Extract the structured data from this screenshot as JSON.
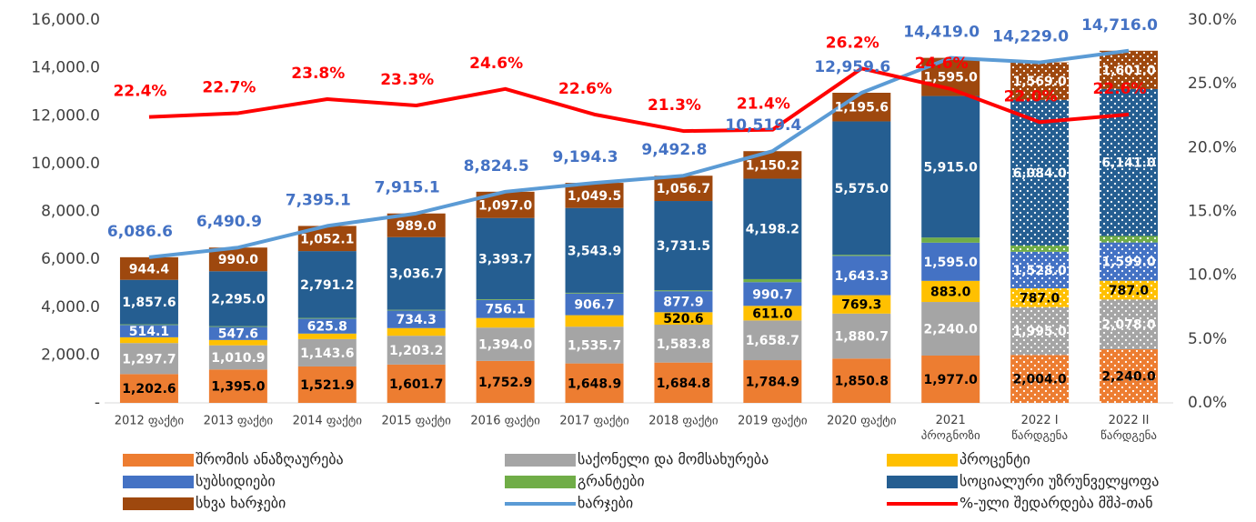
{
  "chart_data": {
    "type": "bar",
    "categories": [
      "2012 ფაქტი",
      "2013 ფაქტი",
      "2014 ფაქტი",
      "2015 ფაქტი",
      "2016 ფაქტი",
      "2017 ფაქტი",
      "2018 ფაქტი",
      "2019 ფაქტი",
      "2020 ფაქტი",
      "2021 პროგნოზი",
      "2022 I წარდგენა",
      "2022 II წარდგენა"
    ],
    "dotted": [
      false,
      false,
      false,
      false,
      false,
      false,
      false,
      false,
      false,
      false,
      true,
      true
    ],
    "ylim": [
      0,
      16000
    ],
    "yticks": [
      {
        "value": 0,
        "label": "-"
      },
      {
        "value": 2000,
        "label": "2,000.0"
      },
      {
        "value": 4000,
        "label": "4,000.0"
      },
      {
        "value": 6000,
        "label": "6,000.0"
      },
      {
        "value": 8000,
        "label": "8,000.0"
      },
      {
        "value": 10000,
        "label": "10,000.0"
      },
      {
        "value": 12000,
        "label": "12,000.0"
      },
      {
        "value": 14000,
        "label": "14,000.0"
      },
      {
        "value": 16000,
        "label": "16,000.0"
      }
    ],
    "y2lim": [
      0,
      30
    ],
    "y2ticks": [
      {
        "value": 0,
        "label": "0.0%"
      },
      {
        "value": 5,
        "label": "5.0%"
      },
      {
        "value": 10,
        "label": "10.0%"
      },
      {
        "value": 15,
        "label": "15.0%"
      },
      {
        "value": 20,
        "label": "20.0%"
      },
      {
        "value": 25,
        "label": "25.0%"
      },
      {
        "value": 30,
        "label": "30.0%"
      }
    ],
    "series": [
      {
        "name": "შრომის ანაზღაურება",
        "type": "bar",
        "color": "#ed7d31",
        "label_color": "#000000",
        "values": [
          1202.6,
          1395.0,
          1521.9,
          1601.7,
          1752.9,
          1648.9,
          1684.8,
          1784.9,
          1850.8,
          1977.0,
          2004.0,
          2240.0
        ],
        "value_labels": [
          "1,202.6",
          "1,395.0",
          "1,521.9",
          "1,601.7",
          "1,752.9",
          "1,648.9",
          "1,684.8",
          "1,784.9",
          "1,850.8",
          "1,977.0",
          "2,004.0",
          "2,240.0"
        ]
      },
      {
        "name": "საქონელი და მომსახურება",
        "type": "bar",
        "color": "#a5a5a5",
        "label_color": "#ffffff",
        "values": [
          1297.7,
          1010.9,
          1143.6,
          1203.2,
          1394.0,
          1535.7,
          1583.8,
          1658.7,
          1880.7,
          2240.0,
          1995.0,
          2078.0
        ],
        "value_labels": [
          "1,297.7",
          "1,010.9",
          "1,143.6",
          "1,203.2",
          "1,394.0",
          "1,535.7",
          "1,583.8",
          "1,658.7",
          "1,880.7",
          "2,240.0",
          "1,995.0",
          "2,078.0"
        ]
      },
      {
        "name": "პროცენტი",
        "type": "bar",
        "color": "#ffc000",
        "label_color": "#000000",
        "values": [
          240,
          222,
          230,
          320,
          400,
          480,
          520.6,
          611.0,
          769.3,
          883.0,
          787.0,
          787.0
        ],
        "value_labels": [
          null,
          null,
          null,
          null,
          null,
          null,
          "520.6",
          "611.0",
          "769.3",
          "883.0",
          "787.0",
          "787.0"
        ]
      },
      {
        "name": "სუბსიდიები",
        "type": "bar",
        "color": "#4472c4",
        "label_color": "#ffffff",
        "values": [
          514.1,
          547.6,
          625.8,
          734.3,
          756.1,
          906.7,
          877.9,
          990.7,
          1643.3,
          1595.0,
          1528.0,
          1599.0
        ],
        "value_labels": [
          "514.1",
          "547.6",
          "625.8",
          "734.3",
          "756.1",
          "906.7",
          "877.9",
          "990.7",
          "1,643.3",
          "1,595.0",
          "1,528.0",
          "1,599.0"
        ]
      },
      {
        "name": "გრანტები",
        "type": "bar",
        "color": "#70ad47",
        "label_color": "#000000",
        "values": [
          30,
          30,
          30,
          30,
          30,
          30,
          37.5,
          125.7,
          44.9,
          214,
          262,
          270
        ]
      },
      {
        "name": "სოციალური უზრუნველყოფა",
        "type": "bar",
        "color": "#255e91",
        "label_color": "#ffffff",
        "values": [
          1857.6,
          2295.0,
          2791.2,
          3036.7,
          3393.7,
          3543.9,
          3731.5,
          4198.2,
          5575.0,
          5915.0,
          6084.0,
          6141.0
        ],
        "value_labels": [
          "1,857.6",
          "2,295.0",
          "2,791.2",
          "3,036.7",
          "3,393.7",
          "3,543.9",
          "3,731.5",
          "4,198.2",
          "5,575.0",
          "5,915.0",
          "6,084.0",
          "6,141.0"
        ]
      },
      {
        "name": "სხვა ხარჯები",
        "type": "bar",
        "color": "#9e480e",
        "label_color": "#ffffff",
        "values": [
          944.4,
          990.0,
          1052.1,
          989.0,
          1097.0,
          1049.5,
          1056.7,
          1150.2,
          1195.6,
          1595.0,
          1569.0,
          1601.0
        ],
        "value_labels": [
          "944.4",
          "990.0",
          "1,052.1",
          "989.0",
          "1,097.0",
          "1,049.5",
          "1,056.7",
          "1,150.2",
          "1,195.6",
          "1,595.0",
          "1,569.0",
          "1,601.0"
        ]
      },
      {
        "name": "ხარჯები",
        "type": "line",
        "color": "#5b9bd5",
        "label_color": "#4472c4",
        "values": [
          6086.6,
          6490.9,
          7395.1,
          7915.1,
          8824.5,
          9194.3,
          9492.8,
          10519.4,
          12959.6,
          14419.0,
          14229.0,
          14716.0
        ],
        "value_labels": [
          "6,086.6",
          "6,490.9",
          "7,395.1",
          "7,915.1",
          "8,824.5",
          "9,194.3",
          "9,492.8",
          "10,519.4",
          "12,959.6",
          "14,419.0",
          "14,229.0",
          "14,716.0"
        ]
      },
      {
        "name": "%-ული შედარდება მშპ-თან",
        "type": "line",
        "axis": "y2",
        "color": "#ff0000",
        "label_color": "#ff0000",
        "values": [
          22.4,
          22.7,
          23.8,
          23.3,
          24.6,
          22.6,
          21.3,
          21.4,
          26.2,
          24.6,
          22.0,
          22.6
        ],
        "value_labels": [
          "22.4%",
          "22.7%",
          "23.8%",
          "23.3%",
          "24.6%",
          "22.6%",
          "21.3%",
          "21.4%",
          "26.2%",
          "24.6%",
          "22.0%",
          "22.6%"
        ]
      }
    ]
  }
}
